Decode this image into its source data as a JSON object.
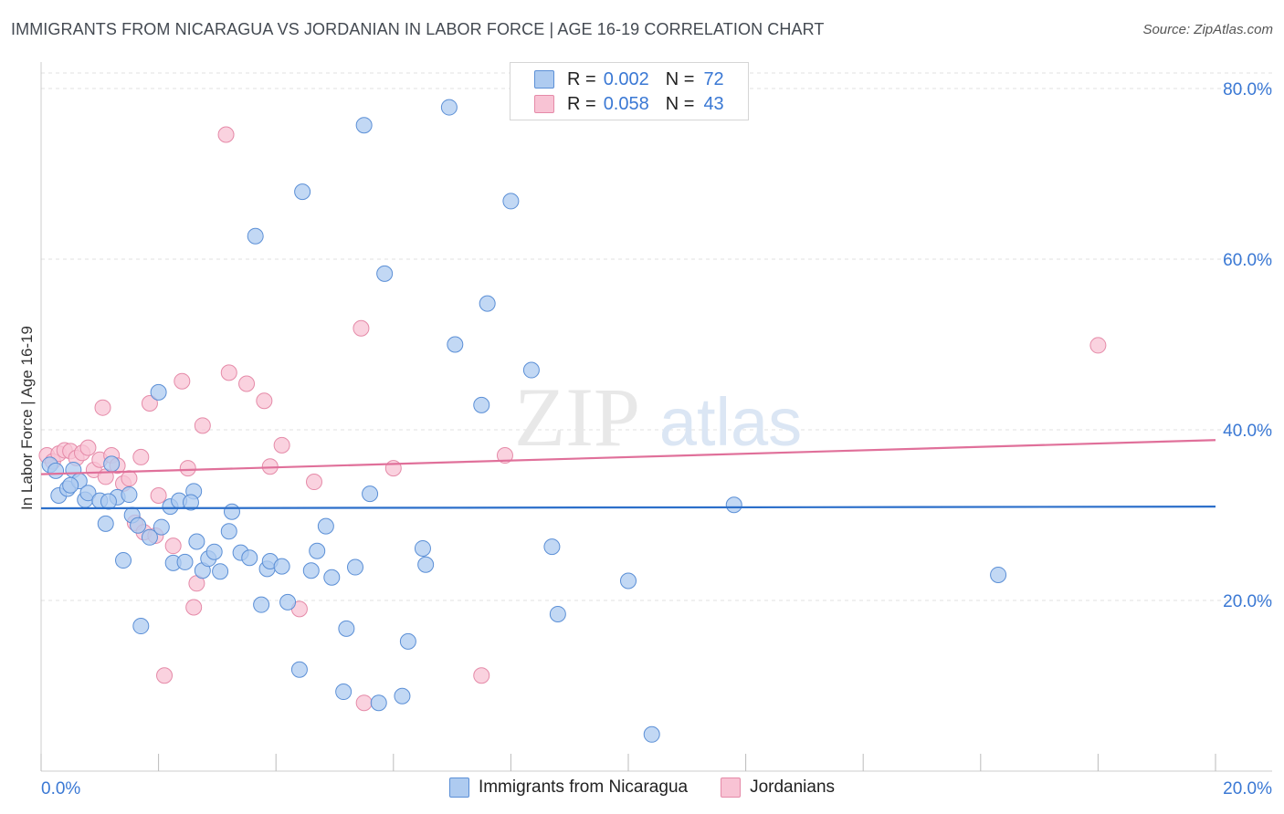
{
  "header": {
    "title": "IMMIGRANTS FROM NICARAGUA VS JORDANIAN IN LABOR FORCE | AGE 16-19 CORRELATION CHART",
    "source": "Source: ZipAtlas.com"
  },
  "watermark": {
    "zip": "ZIP",
    "atlas": "atlas"
  },
  "legend": {
    "rows": [
      {
        "r_label": "R =",
        "r_value": "0.002",
        "n_label": "N =",
        "n_value": "72"
      },
      {
        "r_label": "R =",
        "r_value": "0.058",
        "n_label": "N =",
        "n_value": "43"
      }
    ]
  },
  "bottom_legend": {
    "series1": "Immigrants from Nicaragua",
    "series2": "Jordanians"
  },
  "chart_data": {
    "type": "scatter",
    "title": "IMMIGRANTS FROM NICARAGUA VS JORDANIAN IN LABOR FORCE | AGE 16-19 CORRELATION CHART",
    "xlabel": "",
    "ylabel": "In Labor Force | Age 16-19",
    "xlim": [
      0,
      20
    ],
    "ylim": [
      0,
      80
    ],
    "x_tick_labels": [
      "0.0%",
      "20.0%"
    ],
    "y_ticks": [
      20,
      40,
      60,
      80
    ],
    "y_tick_labels": [
      "20.0%",
      "40.0%",
      "60.0%",
      "80.0%"
    ],
    "grid": true,
    "legend_placement": "top-center",
    "colors": {
      "series1_fill": "#aecbf0",
      "series1_stroke": "#5b8fd6",
      "series1_line": "#2c6fca",
      "series2_fill": "#f8c3d4",
      "series2_stroke": "#e58aa8",
      "series2_line": "#e0709a",
      "tick_label": "#3a78d4",
      "grid": "#e2e2e2"
    },
    "series": [
      {
        "name": "Immigrants from Nicaragua",
        "R": 0.002,
        "N": 72,
        "trend": {
          "x": [
            0,
            20
          ],
          "y": [
            30.8,
            31.0
          ]
        },
        "points": [
          [
            0.15,
            35.9
          ],
          [
            0.25,
            35.2
          ],
          [
            0.3,
            32.3
          ],
          [
            0.45,
            33.1
          ],
          [
            0.55,
            35.3
          ],
          [
            0.65,
            34.0
          ],
          [
            0.75,
            31.8
          ],
          [
            0.8,
            32.6
          ],
          [
            1.0,
            31.7
          ],
          [
            1.1,
            29.0
          ],
          [
            1.2,
            36.0
          ],
          [
            1.3,
            32.1
          ],
          [
            1.4,
            24.7
          ],
          [
            1.5,
            32.4
          ],
          [
            1.55,
            30.0
          ],
          [
            1.65,
            28.8
          ],
          [
            1.7,
            17.0
          ],
          [
            1.85,
            27.4
          ],
          [
            2.0,
            44.4
          ],
          [
            2.05,
            28.6
          ],
          [
            2.2,
            31.0
          ],
          [
            2.25,
            24.4
          ],
          [
            2.35,
            31.7
          ],
          [
            2.45,
            24.5
          ],
          [
            2.6,
            32.8
          ],
          [
            2.65,
            26.9
          ],
          [
            2.75,
            23.5
          ],
          [
            2.85,
            24.9
          ],
          [
            2.95,
            25.7
          ],
          [
            3.05,
            23.4
          ],
          [
            3.2,
            28.1
          ],
          [
            3.25,
            30.4
          ],
          [
            3.4,
            25.6
          ],
          [
            3.55,
            25.0
          ],
          [
            3.65,
            62.7
          ],
          [
            3.75,
            19.5
          ],
          [
            3.85,
            23.7
          ],
          [
            3.9,
            24.6
          ],
          [
            4.1,
            24.0
          ],
          [
            4.2,
            19.8
          ],
          [
            4.4,
            11.9
          ],
          [
            4.45,
            67.9
          ],
          [
            4.6,
            23.5
          ],
          [
            4.7,
            25.8
          ],
          [
            4.85,
            28.7
          ],
          [
            4.95,
            22.7
          ],
          [
            5.2,
            16.7
          ],
          [
            5.15,
            9.3
          ],
          [
            5.35,
            23.9
          ],
          [
            5.5,
            75.7
          ],
          [
            5.6,
            32.5
          ],
          [
            5.75,
            8.0
          ],
          [
            5.85,
            58.3
          ],
          [
            6.15,
            8.8
          ],
          [
            6.25,
            15.2
          ],
          [
            6.5,
            26.1
          ],
          [
            6.55,
            24.2
          ],
          [
            6.95,
            77.8
          ],
          [
            7.05,
            50.0
          ],
          [
            7.5,
            42.9
          ],
          [
            7.6,
            54.8
          ],
          [
            8.0,
            66.8
          ],
          [
            8.35,
            47.0
          ],
          [
            8.7,
            26.3
          ],
          [
            8.8,
            18.4
          ],
          [
            10.0,
            22.3
          ],
          [
            10.4,
            4.3
          ],
          [
            11.8,
            31.2
          ],
          [
            16.3,
            23.0
          ],
          [
            0.5,
            33.5
          ],
          [
            1.15,
            31.6
          ],
          [
            2.55,
            31.5
          ]
        ]
      },
      {
        "name": "Jordanians",
        "R": 0.058,
        "N": 43,
        "trend": {
          "x": [
            0,
            20
          ],
          "y": [
            34.8,
            38.8
          ]
        },
        "points": [
          [
            0.1,
            37.0
          ],
          [
            0.2,
            36.3
          ],
          [
            0.3,
            37.2
          ],
          [
            0.4,
            37.6
          ],
          [
            0.5,
            37.5
          ],
          [
            0.6,
            36.7
          ],
          [
            0.7,
            37.3
          ],
          [
            0.8,
            37.9
          ],
          [
            0.9,
            35.3
          ],
          [
            1.0,
            36.5
          ],
          [
            1.1,
            34.5
          ],
          [
            1.2,
            37.0
          ],
          [
            1.3,
            35.8
          ],
          [
            1.4,
            33.7
          ],
          [
            1.5,
            34.3
          ],
          [
            1.6,
            29.1
          ],
          [
            1.7,
            36.8
          ],
          [
            1.75,
            28.0
          ],
          [
            1.85,
            43.1
          ],
          [
            1.95,
            27.6
          ],
          [
            2.0,
            32.3
          ],
          [
            2.1,
            11.2
          ],
          [
            2.25,
            26.4
          ],
          [
            2.4,
            45.7
          ],
          [
            2.5,
            35.5
          ],
          [
            2.6,
            19.2
          ],
          [
            2.65,
            22.0
          ],
          [
            2.75,
            40.5
          ],
          [
            3.15,
            74.6
          ],
          [
            3.2,
            46.7
          ],
          [
            3.5,
            45.4
          ],
          [
            3.8,
            43.4
          ],
          [
            3.9,
            35.7
          ],
          [
            4.1,
            38.2
          ],
          [
            4.4,
            19.0
          ],
          [
            4.65,
            33.9
          ],
          [
            5.45,
            51.9
          ],
          [
            5.5,
            8.0
          ],
          [
            6.0,
            35.5
          ],
          [
            7.5,
            11.2
          ],
          [
            7.9,
            37.0
          ],
          [
            18.0,
            49.9
          ],
          [
            1.05,
            42.6
          ]
        ]
      }
    ]
  }
}
